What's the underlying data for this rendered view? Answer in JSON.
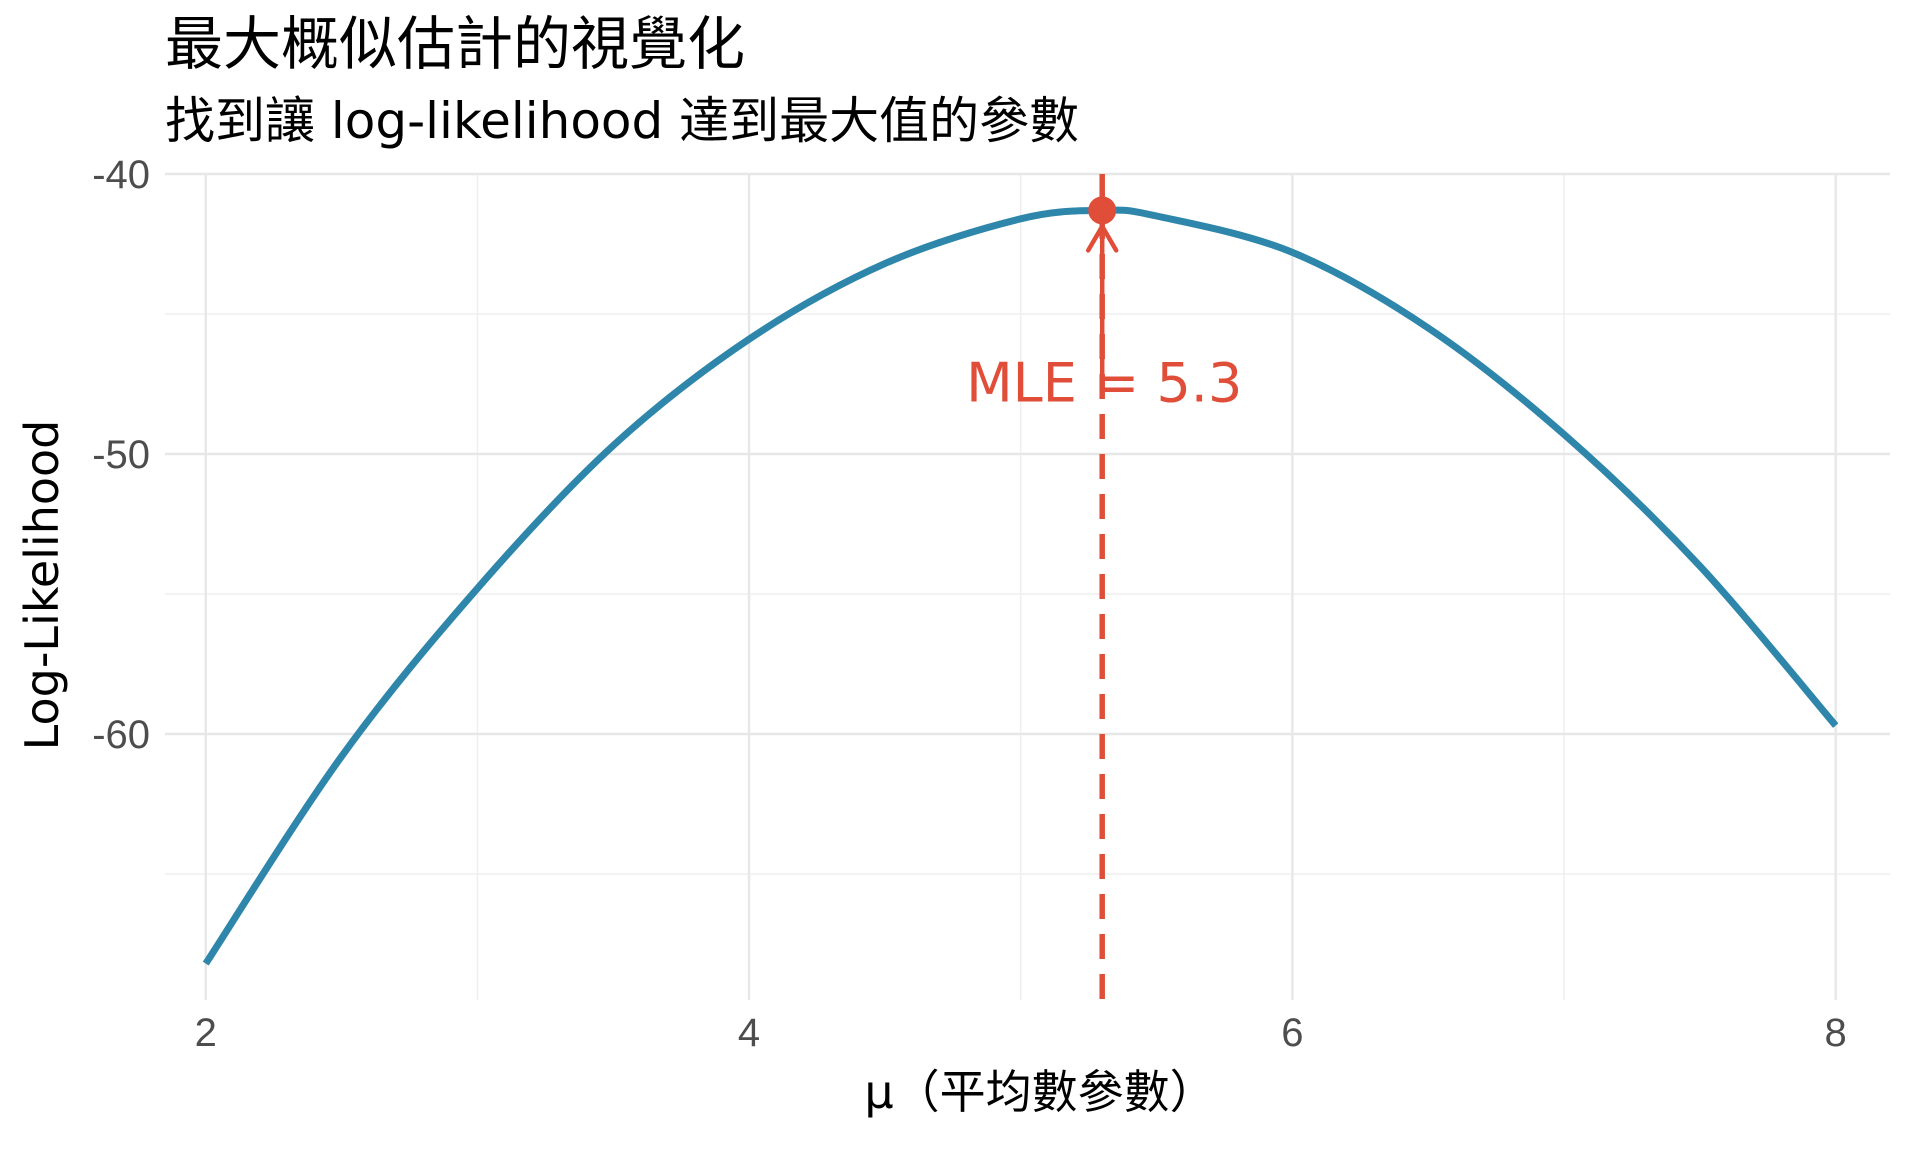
{
  "chart_data": {
    "type": "line",
    "title": "最大概似估計的視覺化",
    "subtitle": "找到讓 log-likelihood 達到最大值的參數",
    "xlabel": "μ（平均數參數）",
    "ylabel": "Log-Likelihood",
    "xlim": [
      1.85,
      8.2
    ],
    "ylim": [
      -69.5,
      -40
    ],
    "x_ticks": [
      2,
      4,
      6,
      8
    ],
    "x_tick_labels": [
      "2",
      "4",
      "6",
      "8"
    ],
    "y_ticks": [
      -40,
      -50,
      -60
    ],
    "y_tick_labels": [
      "-40",
      "-50",
      "-60"
    ],
    "grid": true,
    "series": [
      {
        "color": "#2e86ab",
        "x": [
          2.0,
          2.5,
          3.0,
          3.5,
          4.0,
          4.5,
          5.0,
          5.3,
          5.5,
          6.0,
          6.5,
          7.0,
          7.5,
          8.0
        ],
        "values": [
          -68.2,
          -60.8,
          -54.8,
          -49.7,
          -45.9,
          -43.2,
          -41.6,
          -41.3,
          -41.5,
          -42.8,
          -45.5,
          -49.3,
          -54.0,
          -59.7
        ]
      }
    ],
    "mle": {
      "x": 5.3,
      "y": -41.3,
      "label": "MLE = 5.3",
      "color": "#e04e39"
    }
  }
}
